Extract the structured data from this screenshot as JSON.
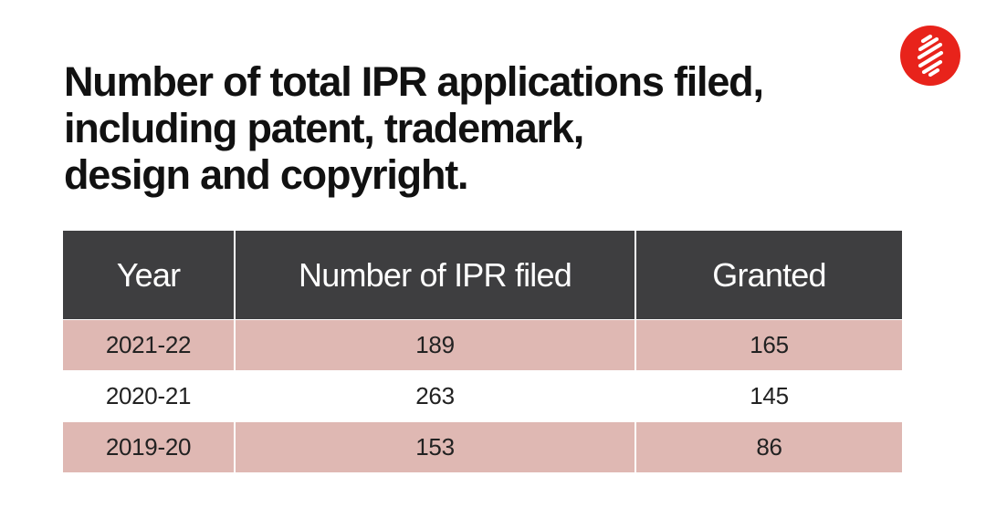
{
  "title_lines": [
    "Number of total IPR applications filed,",
    "including patent, trademark,",
    "design and copyright."
  ],
  "logo": {
    "icon": "indian-express-logo-icon",
    "color": "#e8231b"
  },
  "colors": {
    "header_bg": "#3e3e40",
    "header_text": "#ffffff",
    "row_shade": "#dfb8b3"
  },
  "chart_data": {
    "type": "table",
    "title": "Number of total IPR applications filed, including patent, trademark, design and copyright.",
    "columns": [
      "Year",
      "Number of IPR filed",
      "Granted"
    ],
    "rows": [
      [
        "2021-22",
        "189",
        "165"
      ],
      [
        "2020-21",
        "263",
        "145"
      ],
      [
        "2019-20",
        "153",
        "86"
      ]
    ]
  }
}
